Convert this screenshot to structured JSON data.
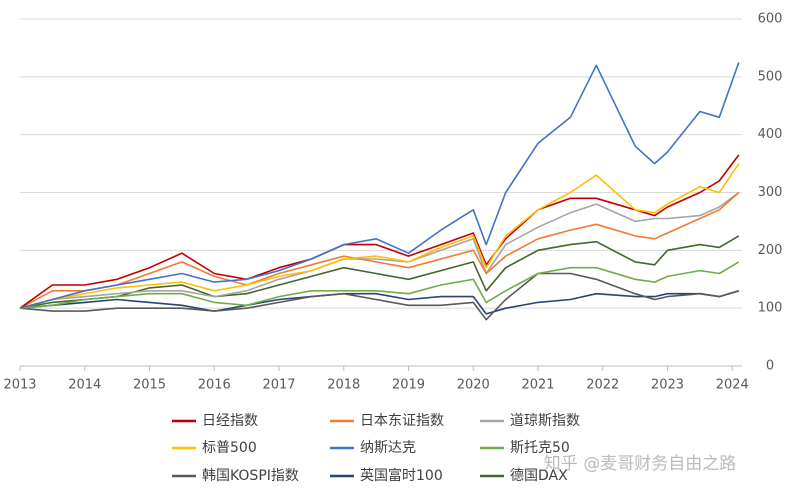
{
  "chart_data": {
    "type": "line",
    "x": [
      2013,
      2013.5,
      2014,
      2014.5,
      2015,
      2015.5,
      2016,
      2016.5,
      2017,
      2017.5,
      2018,
      2018.5,
      2019,
      2019.5,
      2020,
      2020.2,
      2020.5,
      2021,
      2021.5,
      2021.9,
      2022.5,
      2022.8,
      2023,
      2023.5,
      2023.8,
      2024.1
    ],
    "series": [
      {
        "name": "日经指数",
        "color": "#c00000",
        "values": [
          100,
          140,
          140,
          150,
          170,
          195,
          160,
          150,
          170,
          185,
          210,
          210,
          190,
          210,
          230,
          175,
          220,
          270,
          290,
          290,
          270,
          260,
          275,
          300,
          320,
          365
        ]
      },
      {
        "name": "日本东证指数",
        "color": "#ed7d31",
        "values": [
          100,
          130,
          130,
          140,
          160,
          180,
          155,
          140,
          160,
          175,
          190,
          180,
          170,
          185,
          200,
          160,
          190,
          220,
          235,
          245,
          225,
          220,
          230,
          255,
          270,
          300
        ]
      },
      {
        "name": "道琼斯指数",
        "color": "#a5a5a5",
        "values": [
          100,
          115,
          120,
          125,
          130,
          130,
          120,
          130,
          150,
          165,
          185,
          185,
          180,
          200,
          220,
          160,
          210,
          240,
          265,
          280,
          250,
          255,
          255,
          260,
          275,
          300
        ]
      },
      {
        "name": "标普500",
        "color": "#ffc000",
        "values": [
          100,
          115,
          125,
          135,
          140,
          145,
          130,
          140,
          155,
          165,
          185,
          190,
          180,
          205,
          225,
          170,
          225,
          270,
          300,
          330,
          270,
          265,
          280,
          310,
          300,
          350
        ]
      },
      {
        "name": "纳斯达克",
        "color": "#4472c4",
        "values": [
          100,
          115,
          130,
          140,
          150,
          160,
          145,
          150,
          165,
          185,
          210,
          220,
          195,
          235,
          270,
          210,
          300,
          385,
          430,
          520,
          380,
          350,
          370,
          440,
          430,
          525
        ]
      },
      {
        "name": "斯托克50",
        "color": "#70ad47",
        "values": [
          100,
          105,
          115,
          120,
          125,
          125,
          110,
          105,
          120,
          130,
          130,
          130,
          125,
          140,
          150,
          110,
          130,
          160,
          170,
          170,
          150,
          145,
          155,
          165,
          160,
          180
        ]
      },
      {
        "name": "韩国KOSPI指数",
        "color": "#595959",
        "values": [
          100,
          95,
          95,
          100,
          100,
          100,
          95,
          100,
          110,
          120,
          125,
          115,
          105,
          105,
          110,
          80,
          115,
          160,
          160,
          150,
          125,
          115,
          120,
          125,
          120,
          130
        ]
      },
      {
        "name": "英国富时100",
        "color": "#264478",
        "values": [
          100,
          105,
          110,
          115,
          110,
          105,
          95,
          105,
          115,
          120,
          125,
          125,
          115,
          120,
          120,
          90,
          100,
          110,
          115,
          125,
          120,
          120,
          125,
          125,
          120,
          130
        ]
      },
      {
        "name": "德国DAX",
        "color": "#43682b",
        "values": [
          100,
          110,
          115,
          120,
          135,
          140,
          120,
          125,
          140,
          155,
          170,
          160,
          150,
          165,
          180,
          130,
          170,
          200,
          210,
          215,
          180,
          175,
          200,
          210,
          205,
          225
        ]
      }
    ],
    "xlim": [
      2013,
      2024.15
    ],
    "xticks": [
      2013,
      2014,
      2015,
      2016,
      2017,
      2018,
      2019,
      2020,
      2021,
      2022,
      2023,
      2024
    ],
    "ylim": [
      0,
      600
    ],
    "yticks": [
      0,
      100,
      200,
      300,
      400,
      500,
      600
    ],
    "grid": true,
    "annotation": "知乎 @麦哥财务自由之路"
  }
}
